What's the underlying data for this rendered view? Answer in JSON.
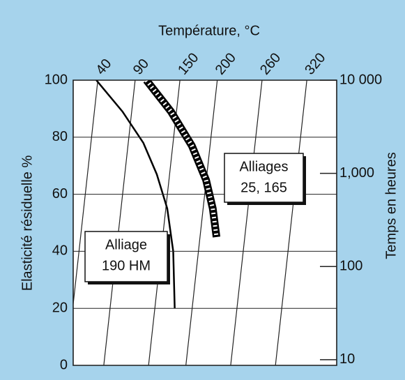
{
  "chart_data": {
    "type": "line",
    "xlabel": "Température, °C",
    "ylabel": "Elasticité résiduelle %",
    "y2label": "Temps en heures",
    "xlim": [
      7,
      360
    ],
    "xticks": [
      40,
      90,
      150,
      200,
      260,
      320
    ],
    "ylim": [
      0,
      100
    ],
    "yticks": [
      0,
      20,
      40,
      60,
      80,
      100
    ],
    "grid": true,
    "y2lim": [
      8.7,
      10000
    ],
    "y2log": true,
    "y2ticks": [
      10,
      100,
      {
        "value": 1000,
        "label": "1,000"
      },
      {
        "value": 10000,
        "label": "10 000"
      }
    ],
    "series": [
      {
        "color": "#000000",
        "style": "hatched",
        "x": [
          105,
          138,
          166,
          185,
          194,
          199
        ],
        "values": [
          100,
          89,
          77,
          65,
          55,
          45
        ]
      },
      {
        "color": "#000000",
        "style": "solid",
        "x": [
          38,
          73,
          101,
          119,
          133,
          141,
          143
        ],
        "values": [
          100,
          89,
          78,
          67,
          55,
          40,
          20
        ]
      }
    ],
    "annotations": [
      {
        "lines": [
          "Alliages",
          "25, 165"
        ]
      },
      {
        "lines": [
          "Alliage",
          "190 HM"
        ]
      }
    ]
  }
}
